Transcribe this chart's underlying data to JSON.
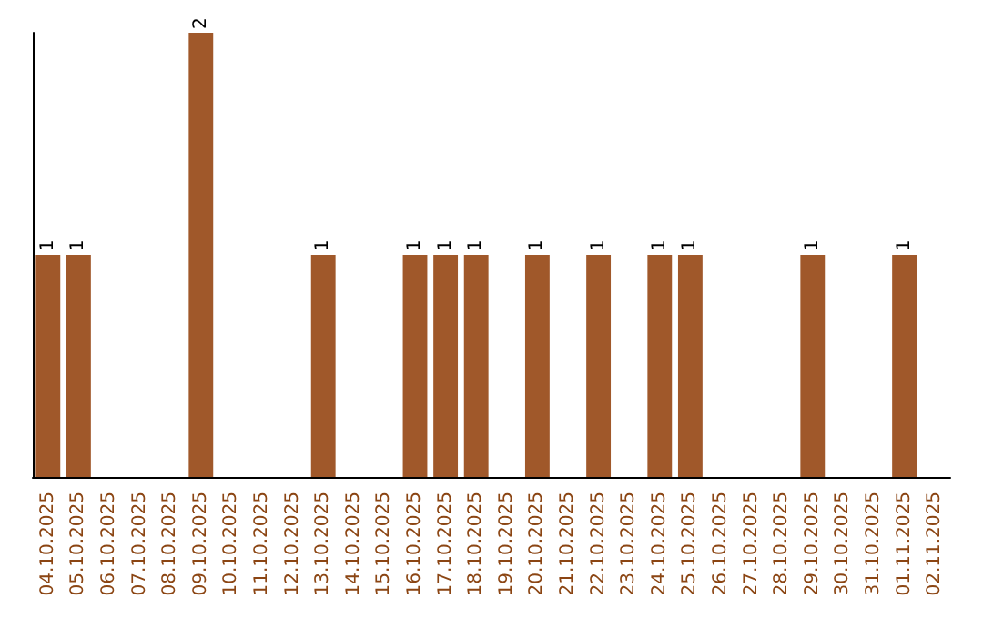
{
  "chart_data": {
    "type": "bar",
    "categories": [
      "04.10.2025",
      "05.10.2025",
      "06.10.2025",
      "07.10.2025",
      "08.10.2025",
      "09.10.2025",
      "10.10.2025",
      "11.10.2025",
      "12.10.2025",
      "13.10.2025",
      "14.10.2025",
      "15.10.2025",
      "16.10.2025",
      "17.10.2025",
      "18.10.2025",
      "19.10.2025",
      "20.10.2025",
      "21.10.2025",
      "22.10.2025",
      "23.10.2025",
      "24.10.2025",
      "25.10.2025",
      "26.10.2025",
      "27.10.2025",
      "28.10.2025",
      "29.10.2025",
      "30.10.2025",
      "31.10.2025",
      "01.11.2025",
      "02.11.2025"
    ],
    "values": [
      1,
      1,
      0,
      0,
      0,
      2,
      0,
      0,
      0,
      1,
      0,
      0,
      1,
      1,
      1,
      0,
      1,
      0,
      1,
      0,
      1,
      1,
      0,
      0,
      0,
      1,
      0,
      0,
      1,
      0
    ],
    "value_labels": [
      "1",
      "1",
      null,
      null,
      null,
      "2",
      null,
      null,
      null,
      "1",
      null,
      null,
      "1",
      "1",
      "1",
      null,
      "1",
      null,
      "1",
      null,
      "1",
      "1",
      null,
      null,
      null,
      "1",
      null,
      null,
      "1",
      null
    ],
    "color": "#a0582a",
    "tick_labels": "x"
  }
}
